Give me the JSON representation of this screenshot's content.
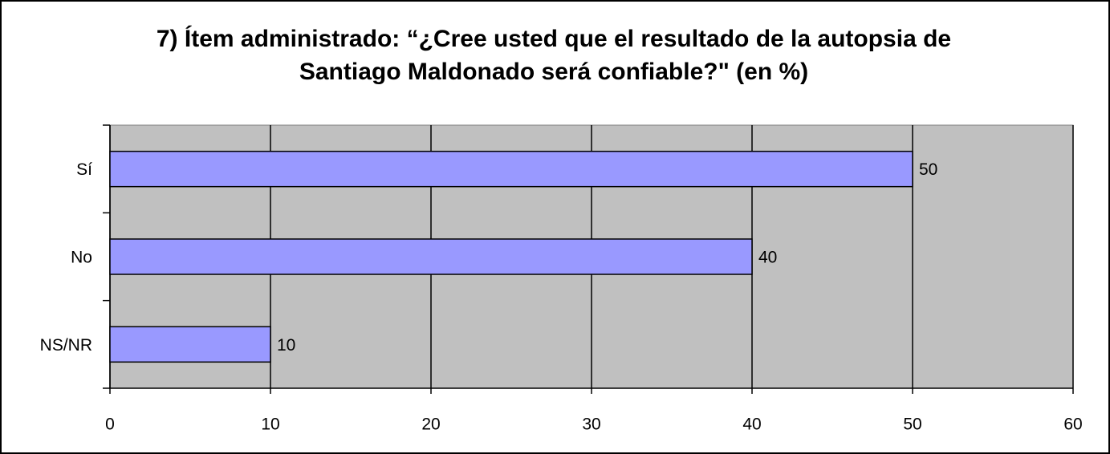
{
  "chart_data": {
    "type": "bar",
    "orientation": "horizontal",
    "title": "7) Ítem administrado: “¿Cree usted que el resultado de la autopsia de Santiago Maldonado será confiable?\" (en %)",
    "categories": [
      "Sí",
      "No",
      "NS/NR"
    ],
    "values": [
      50,
      40,
      10
    ],
    "color": "#9999ff",
    "xlim": [
      0,
      60
    ],
    "xticks": [
      0,
      10,
      20,
      30,
      40,
      50,
      60
    ],
    "grid": true
  }
}
